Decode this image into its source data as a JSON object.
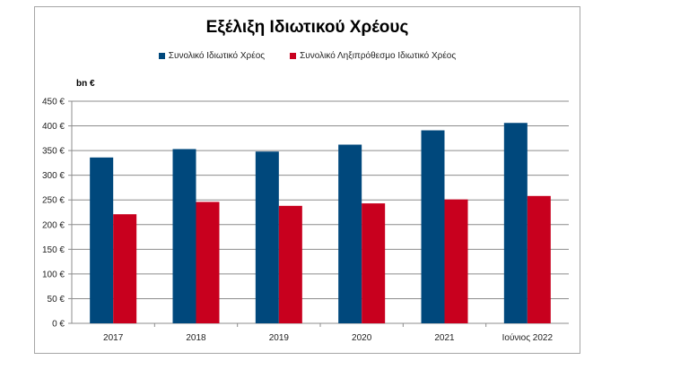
{
  "chart_data": {
    "type": "bar",
    "title": "Εξέλιξη Ιδιωτικού Χρέους",
    "unit_label": "bn €",
    "categories": [
      "2017",
      "2018",
      "2019",
      "2020",
      "2021",
      "Ιούνιος 2022"
    ],
    "series": [
      {
        "name": "Συνολικό Ιδιωτικό Χρέος",
        "color": "#00487c",
        "values": [
          336,
          353,
          348,
          362,
          391,
          406
        ]
      },
      {
        "name": "Συνολικό Ληξιπρόθεσμο Ιδιωτικό Χρέος",
        "color": "#c8001e",
        "values": [
          221,
          246,
          238,
          243,
          251,
          258
        ]
      }
    ],
    "ylim": [
      0,
      450
    ],
    "yticks": [
      0,
      50,
      100,
      150,
      200,
      250,
      300,
      350,
      400,
      450
    ],
    "ytick_labels": [
      "0 €",
      "50 €",
      "100 €",
      "150 €",
      "200 €",
      "250 €",
      "300 €",
      "350 €",
      "400 €",
      "450 €"
    ],
    "grid": true,
    "legend_position": "top"
  }
}
